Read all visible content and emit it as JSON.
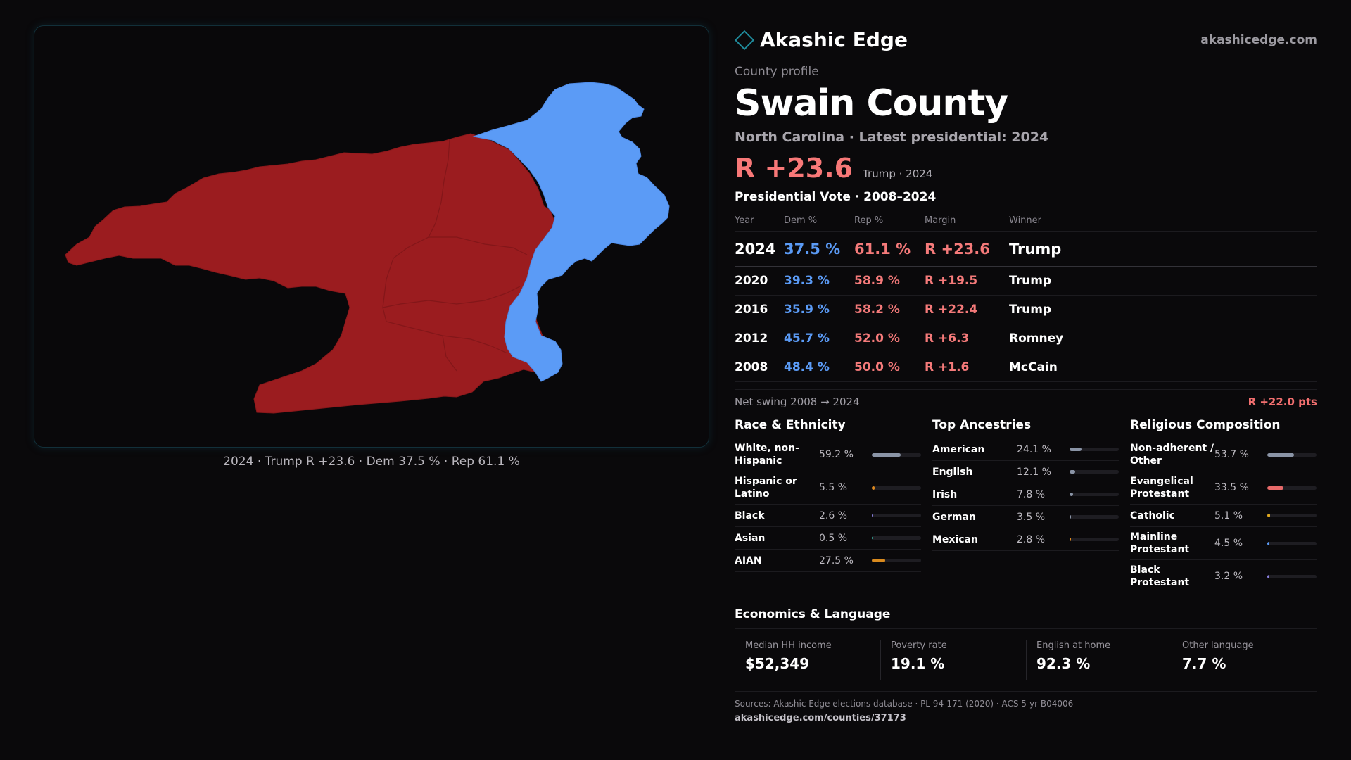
{
  "map": {
    "caption": "2024 · Trump R +23.6 · Dem 37.5 % · Rep 61.1 %",
    "colors": {
      "republican": "#9b1c1f",
      "democrat": "#5b9bf6"
    }
  },
  "header": {
    "brand": "Akashic Edge",
    "site": "akashicedge.com",
    "kicker": "County profile",
    "county": "Swain County",
    "subtitle": "North Carolina · Latest presidential: 2024",
    "headline_margin": "R +23.6",
    "headline_note": "Trump · 2024"
  },
  "votes": {
    "title": "Presidential Vote · 2008–2024",
    "headers": [
      "Year",
      "Dem %",
      "Rep %",
      "Margin",
      "Winner"
    ],
    "rows": [
      {
        "year": "2024",
        "dem": "37.5 %",
        "rep": "61.1 %",
        "margin": "R +23.6",
        "winner": "Trump"
      },
      {
        "year": "2020",
        "dem": "39.3 %",
        "rep": "58.9 %",
        "margin": "R +19.5",
        "winner": "Trump"
      },
      {
        "year": "2016",
        "dem": "35.9 %",
        "rep": "58.2 %",
        "margin": "R +22.4",
        "winner": "Trump"
      },
      {
        "year": "2012",
        "dem": "45.7 %",
        "rep": "52.0 %",
        "margin": "R +6.3",
        "winner": "Romney"
      },
      {
        "year": "2008",
        "dem": "48.4 %",
        "rep": "50.0 %",
        "margin": "R +1.6",
        "winner": "McCain"
      }
    ],
    "swing_label": "Net swing 2008 → 2024",
    "swing_value": "R +22.0 pts"
  },
  "race": {
    "title": "Race & Ethnicity",
    "items": [
      {
        "label": "White, non-Hispanic",
        "value": "59.2 %",
        "pct": 59.2,
        "color": "#8a94a6"
      },
      {
        "label": "Hispanic or Latino",
        "value": "5.5 %",
        "pct": 5.5,
        "color": "#e08a1e"
      },
      {
        "label": "Black",
        "value": "2.6 %",
        "pct": 2.6,
        "color": "#8a7fe0"
      },
      {
        "label": "Asian",
        "value": "0.5 %",
        "pct": 0.5,
        "color": "#3bb0a0"
      },
      {
        "label": "AIAN",
        "value": "27.5 %",
        "pct": 27.5,
        "color": "#d98a1e"
      }
    ]
  },
  "ancestry": {
    "title": "Top Ancestries",
    "items": [
      {
        "label": "American",
        "value": "24.1 %",
        "pct": 24.1,
        "color": "#8a94a6"
      },
      {
        "label": "English",
        "value": "12.1 %",
        "pct": 12.1,
        "color": "#8a94a6"
      },
      {
        "label": "Irish",
        "value": "7.8 %",
        "pct": 7.8,
        "color": "#8a94a6"
      },
      {
        "label": "German",
        "value": "3.5 %",
        "pct": 3.5,
        "color": "#8a94a6"
      },
      {
        "label": "Mexican",
        "value": "2.8 %",
        "pct": 2.8,
        "color": "#e08a1e"
      }
    ]
  },
  "religion": {
    "title": "Religious Composition",
    "items": [
      {
        "label": "Non-adherent / Other",
        "value": "53.7 %",
        "pct": 53.7,
        "color": "#8a94a6"
      },
      {
        "label": "Evangelical Protestant",
        "value": "33.5 %",
        "pct": 33.5,
        "color": "#e86a6a"
      },
      {
        "label": "Catholic",
        "value": "5.1 %",
        "pct": 5.1,
        "color": "#e0a81e"
      },
      {
        "label": "Mainline Protestant",
        "value": "4.5 %",
        "pct": 4.5,
        "color": "#5b9bf6"
      },
      {
        "label": "Black Protestant",
        "value": "3.2 %",
        "pct": 3.2,
        "color": "#8a7fe0"
      }
    ]
  },
  "economics": {
    "title": "Economics & Language",
    "cells": [
      {
        "label": "Median HH income",
        "value": "$52,349"
      },
      {
        "label": "Poverty rate",
        "value": "19.1 %"
      },
      {
        "label": "English at home",
        "value": "92.3 %"
      },
      {
        "label": "Other language",
        "value": "7.7 %"
      }
    ]
  },
  "footer": {
    "sources": "Sources: Akashic Edge elections database · PL 94-171 (2020) · ACS 5-yr B04006",
    "url": "akashicedge.com/counties/37173"
  }
}
